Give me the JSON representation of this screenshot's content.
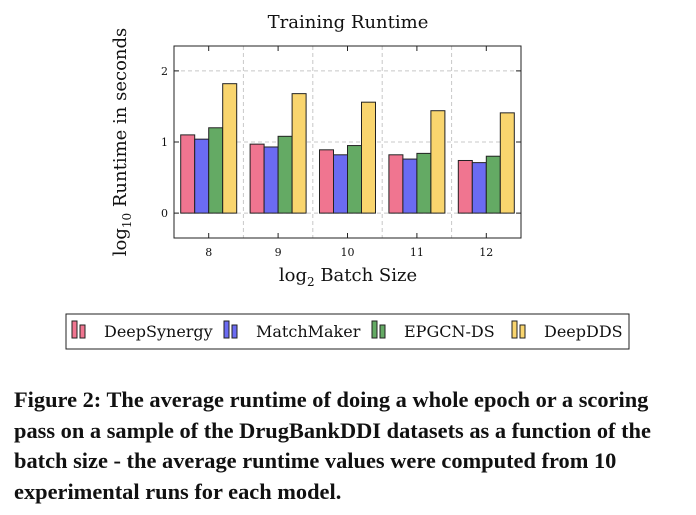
{
  "chart_data": {
    "type": "bar",
    "title": "Training Runtime",
    "xlabel": "log2 Batch Size",
    "xlabel_base": "log",
    "xlabel_sub": "2",
    "xlabel_rest": " Batch Size",
    "ylabel": "log10 Runtime in seconds",
    "ylabel_base": "log",
    "ylabel_sub": "10",
    "ylabel_rest": " Runtime in seconds",
    "categories": [
      "8",
      "9",
      "10",
      "11",
      "12"
    ],
    "ylim": [
      -0.35,
      2.35
    ],
    "yticks": [
      0,
      1,
      2
    ],
    "ytick_labels": [
      "0",
      "1",
      "2"
    ],
    "grid": true,
    "legend_position": "bottom",
    "series": [
      {
        "name": "DeepSynergy",
        "color": "#f07590",
        "values": [
          1.1,
          0.97,
          0.89,
          0.82,
          0.74
        ]
      },
      {
        "name": "MatchMaker",
        "color": "#6b6bf2",
        "values": [
          1.04,
          0.93,
          0.82,
          0.76,
          0.71
        ]
      },
      {
        "name": "EPGCN-DS",
        "color": "#64aa64",
        "values": [
          1.2,
          1.08,
          0.95,
          0.84,
          0.8
        ]
      },
      {
        "name": "DeepDDS",
        "color": "#f9d56e",
        "values": [
          1.82,
          1.68,
          1.56,
          1.44,
          1.41
        ]
      }
    ]
  },
  "caption": "Figure 2: The average runtime of doing a whole epoch or a scoring pass on a sample of the DrugBankDDI datasets as a function of the batch size - the average runtime values were computed from 10 experimental runs for each model."
}
